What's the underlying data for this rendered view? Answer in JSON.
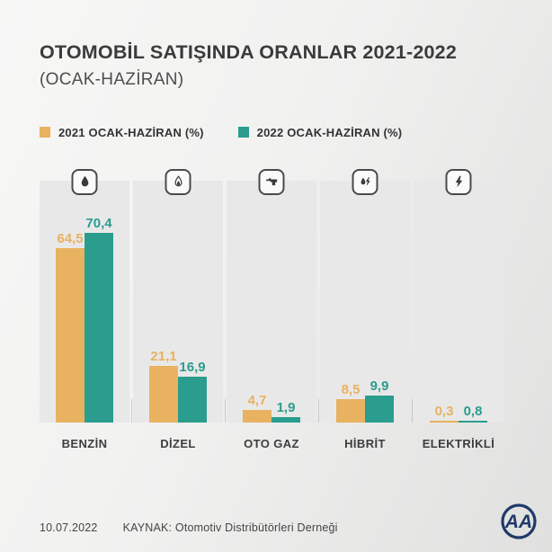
{
  "header": {
    "title": "OTOMOBİL SATIŞINDA ORANLAR 2021-2022",
    "subtitle": "(OCAK-HAZİRAN)"
  },
  "legend": [
    {
      "label": "2021 OCAK-HAZİRAN (%)",
      "color": "#e8b261"
    },
    {
      "label": "2022 OCAK-HAZİRAN (%)",
      "color": "#2a9d8f"
    }
  ],
  "chart_data": {
    "type": "bar",
    "title": "OTOMOBİL SATIŞINDA ORANLAR 2021-2022 (OCAK-HAZİRAN)",
    "categories": [
      "BENZİN",
      "DİZEL",
      "OTO GAZ",
      "HİBRİT",
      "ELEKTRİKLİ"
    ],
    "category_icons": [
      "fuel-drop-icon",
      "diesel-drop-icon",
      "gas-nozzle-icon",
      "hybrid-drop-bolt-icon",
      "lightning-icon"
    ],
    "series": [
      {
        "name": "2021 OCAK-HAZİRAN (%)",
        "color": "#e8b261",
        "values": [
          64.5,
          21.1,
          4.7,
          8.5,
          0.3
        ],
        "labels": [
          "64,5",
          "21,1",
          "4,7",
          "8,5",
          "0,3"
        ]
      },
      {
        "name": "2022 OCAK-HAZİRAN (%)",
        "color": "#2a9d8f",
        "values": [
          70.4,
          16.9,
          1.9,
          9.9,
          0.8
        ],
        "labels": [
          "70,4",
          "16,9",
          "1,9",
          "9,9",
          "0,8"
        ]
      }
    ],
    "ylabel": "",
    "xlabel": "",
    "ylim": [
      0,
      75
    ],
    "grid": false,
    "legend_position": "top"
  },
  "footer": {
    "date": "10.07.2022",
    "source": "KAYNAK: Otomotiv Distribütörleri Derneği",
    "logo_text": "AA",
    "logo_color": "#1f3a68"
  }
}
